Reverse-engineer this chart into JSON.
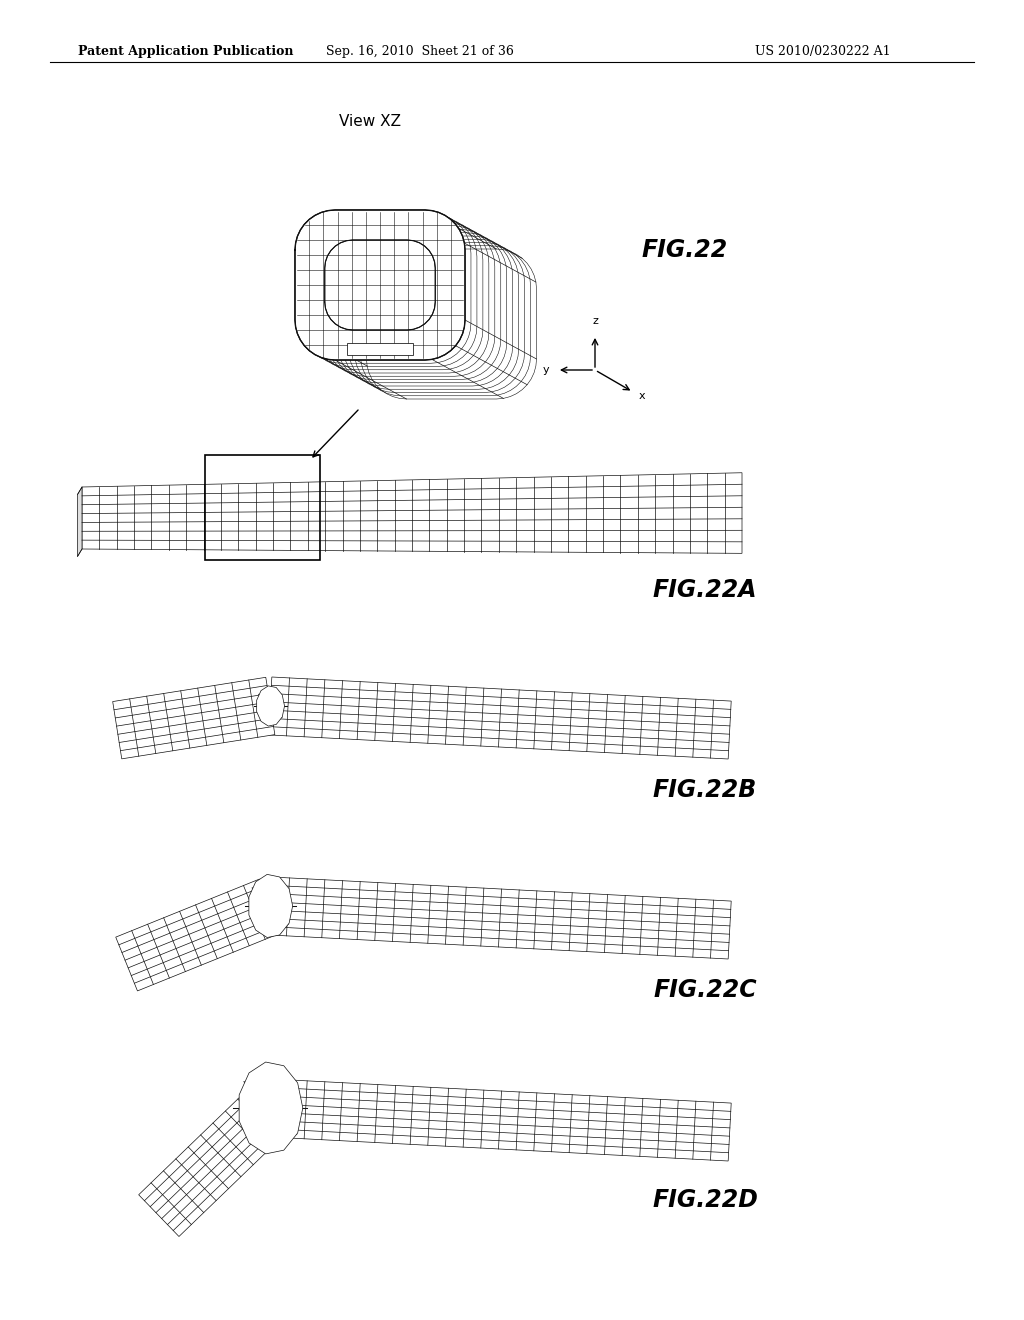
{
  "background_color": "#ffffff",
  "header_left": "Patent Application Publication",
  "header_center": "Sep. 16, 2010  Sheet 21 of 36",
  "header_right": "US 2010/0230222 A1",
  "view_label": "View XZ",
  "fig22_label": "FIG.22",
  "fig22a_label": "FIG.22A",
  "fig22b_label": "FIG.22B",
  "fig22c_label": "FIG.22C",
  "fig22d_label": "FIG.22D",
  "text_color": "#000000",
  "line_color": "#000000",
  "mesh_color": "#222222",
  "header_fontsize": 9,
  "label_fontsize": 15,
  "view_fontsize": 11,
  "fig_label_fontsize": 17
}
